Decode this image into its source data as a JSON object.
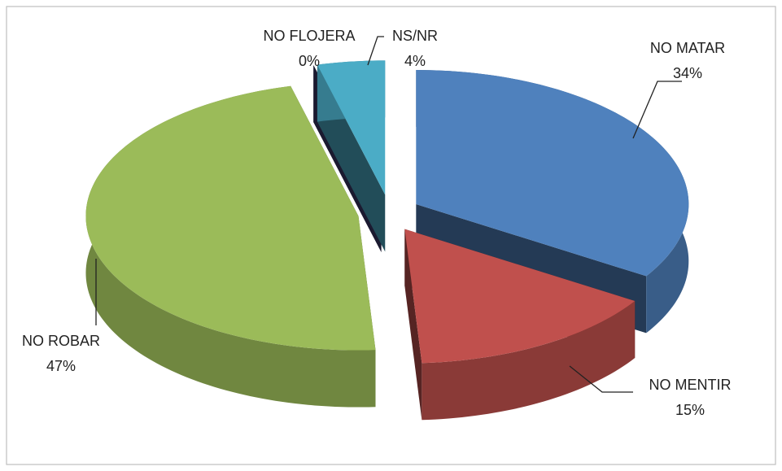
{
  "chart_data": {
    "type": "pie",
    "categories": [
      "NO MATAR",
      "NO MENTIR",
      "NO ROBAR",
      "NO FLOJERA",
      "NS/NR"
    ],
    "values": [
      34,
      15,
      47,
      0,
      4
    ],
    "value_labels": [
      "34%",
      "15%",
      "47%",
      "0%",
      "4%"
    ],
    "colors": [
      "#4f81bd",
      "#c0504d",
      "#9bbb59",
      "#3d3a6b",
      "#4bacc6"
    ]
  }
}
